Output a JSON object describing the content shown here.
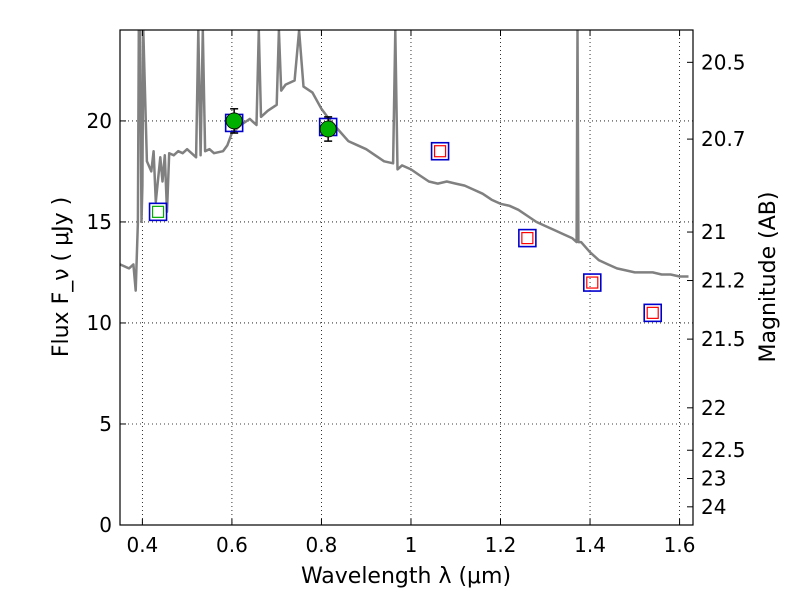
{
  "chart_data": {
    "type": "scatter",
    "xlabel": "Wavelength  λ (μm)",
    "ylabel": "Flux  F_ν  ( μJy )",
    "ylabel_right": "Magnitude (AB)",
    "xlim": [
      0.35,
      1.63
    ],
    "ylim": [
      0,
      24.5
    ],
    "grid": true,
    "x_ticks": [
      0.4,
      0.6,
      0.8,
      1.0,
      1.2,
      1.4,
      1.6
    ],
    "x_tick_labels": [
      "0.4",
      "0.6",
      "0.8",
      "1",
      "1.2",
      "1.4",
      "1.6"
    ],
    "y_ticks": [
      0,
      5,
      10,
      15,
      20
    ],
    "y_tick_labels": [
      "0",
      "5",
      "10",
      "15",
      "20"
    ],
    "right_axis_ticks": [
      {
        "label": "20.5",
        "flux": 22.9
      },
      {
        "label": "20.7",
        "flux": 19.1
      },
      {
        "label": "21",
        "flux": 14.5
      },
      {
        "label": "21.2",
        "flux": 12.1
      },
      {
        "label": "21.5",
        "flux": 9.2
      },
      {
        "label": "22",
        "flux": 5.8
      },
      {
        "label": "22.5",
        "flux": 3.7
      },
      {
        "label": "23",
        "flux": 2.3
      },
      {
        "label": "24",
        "flux": 0.9
      }
    ],
    "series": [
      {
        "kind": "line",
        "color": "#808080",
        "x": [
          0.35,
          0.36,
          0.37,
          0.38,
          0.385,
          0.39,
          0.392,
          0.395,
          0.398,
          0.4,
          0.402,
          0.41,
          0.42,
          0.425,
          0.43,
          0.44,
          0.445,
          0.45,
          0.455,
          0.46,
          0.47,
          0.48,
          0.49,
          0.5,
          0.52,
          0.525,
          0.53,
          0.535,
          0.54,
          0.55,
          0.56,
          0.58,
          0.59,
          0.6,
          0.62,
          0.64,
          0.655,
          0.66,
          0.665,
          0.68,
          0.7,
          0.705,
          0.71,
          0.72,
          0.74,
          0.75,
          0.76,
          0.78,
          0.8,
          0.82,
          0.84,
          0.86,
          0.88,
          0.9,
          0.92,
          0.94,
          0.96,
          0.965,
          0.97,
          0.98,
          1.0,
          1.02,
          1.04,
          1.06,
          1.08,
          1.1,
          1.12,
          1.14,
          1.16,
          1.18,
          1.2,
          1.22,
          1.24,
          1.26,
          1.28,
          1.3,
          1.32,
          1.34,
          1.36,
          1.37,
          1.372,
          1.374,
          1.38,
          1.4,
          1.42,
          1.44,
          1.46,
          1.48,
          1.5,
          1.52,
          1.54,
          1.56,
          1.58,
          1.6,
          1.62
        ],
        "y": [
          12.9,
          12.8,
          12.7,
          12.9,
          11.6,
          15.0,
          24.5,
          24.5,
          15.0,
          16.8,
          24.5,
          18.0,
          17.5,
          18.5,
          16.0,
          18.2,
          17.0,
          18.3,
          15.5,
          18.4,
          18.3,
          18.5,
          18.4,
          18.6,
          18.2,
          24.5,
          18.3,
          24.5,
          18.5,
          18.6,
          18.4,
          18.5,
          18.8,
          19.4,
          19.8,
          20.1,
          19.8,
          24.5,
          20.2,
          20.5,
          20.8,
          24.5,
          21.5,
          21.8,
          22.0,
          24.5,
          21.7,
          21.4,
          20.6,
          20.0,
          19.5,
          19.0,
          18.8,
          18.6,
          18.3,
          18.0,
          17.9,
          24.5,
          17.6,
          17.8,
          17.6,
          17.3,
          17.0,
          16.9,
          17.0,
          16.9,
          16.8,
          16.6,
          16.4,
          16.1,
          15.9,
          15.8,
          15.6,
          15.3,
          15.0,
          14.8,
          14.6,
          14.4,
          14.2,
          14.0,
          24.5,
          14.0,
          14.0,
          13.5,
          13.1,
          12.9,
          12.7,
          12.6,
          12.5,
          12.5,
          12.5,
          12.4,
          12.4,
          12.3,
          12.3
        ]
      },
      {
        "kind": "blue-open-squares",
        "color": "#0000cc",
        "x": [
          0.435,
          0.605,
          0.815,
          1.065,
          1.26,
          1.405,
          1.54
        ],
        "y": [
          15.5,
          19.9,
          19.7,
          18.5,
          14.2,
          12.0,
          10.5
        ]
      },
      {
        "kind": "red-open-squares",
        "color": "#ff0000",
        "x": [
          1.065,
          1.26,
          1.405,
          1.54
        ],
        "y": [
          18.5,
          14.2,
          12.0,
          10.5
        ]
      },
      {
        "kind": "green-open-square",
        "color": "#00aa00",
        "x": [
          0.435
        ],
        "y": [
          15.5
        ]
      },
      {
        "kind": "green-filled-circles-with-errorbars",
        "color": "#00b000",
        "x": [
          0.605,
          0.815
        ],
        "y": [
          20.0,
          19.6
        ],
        "yerr": [
          0.6,
          0.6
        ]
      }
    ]
  }
}
